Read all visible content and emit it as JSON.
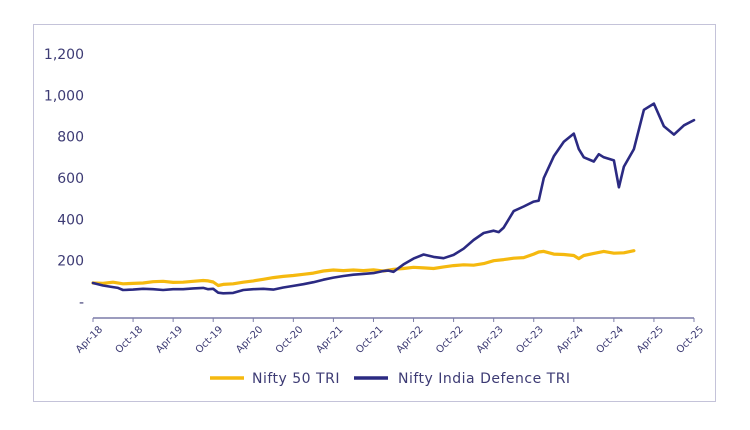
{
  "chart_data": {
    "type": "line",
    "title": "",
    "xlabel": "",
    "ylabel": "",
    "ylim": [
      0,
      1200
    ],
    "yticks": [
      0,
      200,
      400,
      600,
      800,
      1000,
      1200
    ],
    "ytick_labels": [
      "-",
      "200",
      "400",
      "600",
      "800",
      "1,000",
      "1,200"
    ],
    "xtick_labels": [
      "Apr-18",
      "Oct-18",
      "Apr-19",
      "Oct-19",
      "Apr-20",
      "Oct-20",
      "Apr-21",
      "Oct-21",
      "Apr-22",
      "Oct-22",
      "Apr-23",
      "Oct-23",
      "Apr-24",
      "Oct-24",
      "Apr-25",
      "Oct-25"
    ],
    "x_months_range": [
      0,
      90
    ],
    "grid": false,
    "legend_position": "bottom",
    "series": [
      {
        "name": "Nifty 50 TRI",
        "color": "#f5b90f",
        "points": [
          [
            0,
            92
          ],
          [
            2,
            90
          ],
          [
            4,
            96
          ],
          [
            6,
            88
          ],
          [
            8,
            90
          ],
          [
            10,
            92
          ],
          [
            12,
            98
          ],
          [
            14,
            100
          ],
          [
            16,
            95
          ],
          [
            18,
            96
          ],
          [
            20,
            100
          ],
          [
            22,
            104
          ],
          [
            23,
            102
          ],
          [
            24,
            97
          ],
          [
            25,
            80
          ],
          [
            26,
            85
          ],
          [
            28,
            88
          ],
          [
            30,
            96
          ],
          [
            32,
            102
          ],
          [
            34,
            110
          ],
          [
            36,
            118
          ],
          [
            38,
            124
          ],
          [
            40,
            128
          ],
          [
            42,
            134
          ],
          [
            44,
            140
          ],
          [
            46,
            150
          ],
          [
            48,
            155
          ],
          [
            50,
            152
          ],
          [
            52,
            155
          ],
          [
            54,
            152
          ],
          [
            56,
            156
          ],
          [
            58,
            150
          ],
          [
            60,
            158
          ],
          [
            62,
            162
          ],
          [
            64,
            168
          ],
          [
            66,
            165
          ],
          [
            68,
            162
          ],
          [
            70,
            170
          ],
          [
            72,
            176
          ],
          [
            74,
            180
          ],
          [
            76,
            178
          ],
          [
            78,
            186
          ],
          [
            80,
            200
          ],
          [
            82,
            205
          ],
          [
            84,
            212
          ],
          [
            86,
            215
          ],
          [
            88,
            232
          ],
          [
            89,
            242
          ],
          [
            90,
            245
          ],
          [
            92,
            232
          ],
          [
            94,
            230
          ],
          [
            96,
            225
          ],
          [
            97,
            210
          ],
          [
            98,
            225
          ],
          [
            100,
            235
          ],
          [
            102,
            245
          ],
          [
            104,
            236
          ],
          [
            106,
            238
          ],
          [
            108,
            248
          ]
        ],
        "note": "values approximate, read from chart"
      },
      {
        "name": "Nifty India Defence TRI",
        "color": "#2b2a82",
        "points": [
          [
            0,
            92
          ],
          [
            2,
            80
          ],
          [
            4,
            72
          ],
          [
            5,
            68
          ],
          [
            6,
            58
          ],
          [
            8,
            60
          ],
          [
            10,
            64
          ],
          [
            12,
            62
          ],
          [
            14,
            58
          ],
          [
            16,
            62
          ],
          [
            18,
            62
          ],
          [
            20,
            66
          ],
          [
            22,
            68
          ],
          [
            23,
            62
          ],
          [
            24,
            64
          ],
          [
            25,
            45
          ],
          [
            26,
            42
          ],
          [
            28,
            44
          ],
          [
            30,
            58
          ],
          [
            32,
            62
          ],
          [
            34,
            64
          ],
          [
            36,
            60
          ],
          [
            38,
            70
          ],
          [
            40,
            78
          ],
          [
            42,
            86
          ],
          [
            44,
            96
          ],
          [
            46,
            108
          ],
          [
            48,
            118
          ],
          [
            50,
            126
          ],
          [
            52,
            132
          ],
          [
            54,
            136
          ],
          [
            56,
            140
          ],
          [
            58,
            150
          ],
          [
            59,
            152
          ],
          [
            60,
            146
          ],
          [
            62,
            182
          ],
          [
            64,
            210
          ],
          [
            66,
            230
          ],
          [
            68,
            218
          ],
          [
            70,
            212
          ],
          [
            72,
            228
          ],
          [
            74,
            258
          ],
          [
            76,
            300
          ],
          [
            78,
            334
          ],
          [
            80,
            345
          ],
          [
            81,
            338
          ],
          [
            82,
            360
          ],
          [
            84,
            440
          ],
          [
            86,
            462
          ],
          [
            88,
            486
          ],
          [
            89,
            490
          ],
          [
            90,
            600
          ],
          [
            92,
            705
          ],
          [
            94,
            775
          ],
          [
            96,
            815
          ],
          [
            97,
            740
          ],
          [
            98,
            700
          ],
          [
            100,
            680
          ],
          [
            101,
            715
          ],
          [
            102,
            700
          ],
          [
            104,
            685
          ],
          [
            105,
            555
          ],
          [
            106,
            655
          ],
          [
            108,
            740
          ],
          [
            110,
            930
          ],
          [
            112,
            960
          ],
          [
            114,
            850
          ],
          [
            116,
            810
          ],
          [
            118,
            855
          ],
          [
            120,
            880
          ]
        ]
      }
    ]
  },
  "legend": {
    "items": [
      "Nifty 50 TRI",
      "Nifty India Defence TRI"
    ]
  }
}
